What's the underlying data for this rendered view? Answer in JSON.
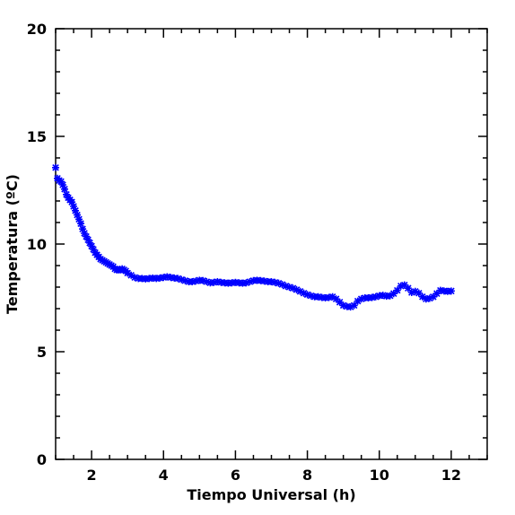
{
  "chart_data": {
    "type": "scatter",
    "marker": "asterisk",
    "title": "",
    "xlabel": "Tiempo Universal (h)",
    "ylabel": "Temperatura (ºC)",
    "xlim": [
      1.0,
      13.0
    ],
    "ylim": [
      0,
      20
    ],
    "xticks": [
      2,
      4,
      6,
      8,
      10,
      12
    ],
    "yticks": [
      0,
      5,
      10,
      15,
      20
    ],
    "grid": false,
    "series": [
      {
        "name": "",
        "color": "#0000ff",
        "points": [
          [
            1.0,
            13.55
          ],
          [
            1.05,
            13.05
          ],
          [
            1.1,
            12.95
          ],
          [
            1.15,
            12.9
          ],
          [
            1.2,
            12.75
          ],
          [
            1.25,
            12.55
          ],
          [
            1.3,
            12.3
          ],
          [
            1.35,
            12.15
          ],
          [
            1.4,
            12.05
          ],
          [
            1.45,
            11.95
          ],
          [
            1.5,
            11.75
          ],
          [
            1.55,
            11.55
          ],
          [
            1.6,
            11.35
          ],
          [
            1.65,
            11.15
          ],
          [
            1.7,
            10.95
          ],
          [
            1.75,
            10.7
          ],
          [
            1.8,
            10.5
          ],
          [
            1.85,
            10.35
          ],
          [
            1.9,
            10.2
          ],
          [
            1.95,
            10.05
          ],
          [
            2.0,
            9.9
          ],
          [
            2.05,
            9.75
          ],
          [
            2.1,
            9.6
          ],
          [
            2.15,
            9.5
          ],
          [
            2.2,
            9.4
          ],
          [
            2.25,
            9.3
          ],
          [
            2.3,
            9.25
          ],
          [
            2.35,
            9.2
          ],
          [
            2.4,
            9.15
          ],
          [
            2.45,
            9.1
          ],
          [
            2.5,
            9.05
          ],
          [
            2.55,
            9.0
          ],
          [
            2.6,
            8.95
          ],
          [
            2.65,
            8.85
          ],
          [
            2.7,
            8.8
          ],
          [
            2.75,
            8.8
          ],
          [
            2.8,
            8.8
          ],
          [
            2.85,
            8.85
          ],
          [
            2.9,
            8.8
          ],
          [
            2.95,
            8.75
          ],
          [
            3.0,
            8.65
          ],
          [
            3.1,
            8.55
          ],
          [
            3.2,
            8.45
          ],
          [
            3.3,
            8.4
          ],
          [
            3.4,
            8.4
          ],
          [
            3.5,
            8.38
          ],
          [
            3.6,
            8.4
          ],
          [
            3.7,
            8.42
          ],
          [
            3.8,
            8.4
          ],
          [
            3.9,
            8.42
          ],
          [
            4.0,
            8.45
          ],
          [
            4.1,
            8.48
          ],
          [
            4.2,
            8.45
          ],
          [
            4.3,
            8.42
          ],
          [
            4.4,
            8.4
          ],
          [
            4.5,
            8.35
          ],
          [
            4.6,
            8.3
          ],
          [
            4.7,
            8.25
          ],
          [
            4.8,
            8.25
          ],
          [
            4.9,
            8.28
          ],
          [
            5.0,
            8.32
          ],
          [
            5.1,
            8.3
          ],
          [
            5.2,
            8.25
          ],
          [
            5.3,
            8.2
          ],
          [
            5.4,
            8.22
          ],
          [
            5.5,
            8.25
          ],
          [
            5.6,
            8.22
          ],
          [
            5.7,
            8.2
          ],
          [
            5.8,
            8.18
          ],
          [
            5.9,
            8.2
          ],
          [
            6.0,
            8.22
          ],
          [
            6.1,
            8.2
          ],
          [
            6.2,
            8.18
          ],
          [
            6.3,
            8.2
          ],
          [
            6.4,
            8.25
          ],
          [
            6.5,
            8.3
          ],
          [
            6.6,
            8.32
          ],
          [
            6.7,
            8.3
          ],
          [
            6.8,
            8.28
          ],
          [
            6.9,
            8.25
          ],
          [
            7.0,
            8.25
          ],
          [
            7.1,
            8.22
          ],
          [
            7.2,
            8.18
          ],
          [
            7.3,
            8.12
          ],
          [
            7.4,
            8.05
          ],
          [
            7.5,
            8.0
          ],
          [
            7.6,
            7.95
          ],
          [
            7.7,
            7.88
          ],
          [
            7.8,
            7.8
          ],
          [
            7.9,
            7.72
          ],
          [
            8.0,
            7.65
          ],
          [
            8.1,
            7.6
          ],
          [
            8.2,
            7.55
          ],
          [
            8.3,
            7.55
          ],
          [
            8.4,
            7.52
          ],
          [
            8.5,
            7.5
          ],
          [
            8.6,
            7.52
          ],
          [
            8.7,
            7.55
          ],
          [
            8.8,
            7.45
          ],
          [
            8.9,
            7.3
          ],
          [
            9.0,
            7.15
          ],
          [
            9.1,
            7.1
          ],
          [
            9.2,
            7.08
          ],
          [
            9.3,
            7.15
          ],
          [
            9.4,
            7.35
          ],
          [
            9.5,
            7.45
          ],
          [
            9.6,
            7.5
          ],
          [
            9.7,
            7.5
          ],
          [
            9.8,
            7.52
          ],
          [
            9.9,
            7.55
          ],
          [
            10.0,
            7.6
          ],
          [
            10.1,
            7.62
          ],
          [
            10.2,
            7.58
          ],
          [
            10.3,
            7.6
          ],
          [
            10.4,
            7.7
          ],
          [
            10.5,
            7.85
          ],
          [
            10.6,
            8.05
          ],
          [
            10.7,
            8.1
          ],
          [
            10.8,
            7.95
          ],
          [
            10.9,
            7.75
          ],
          [
            11.0,
            7.8
          ],
          [
            11.1,
            7.72
          ],
          [
            11.2,
            7.55
          ],
          [
            11.3,
            7.45
          ],
          [
            11.4,
            7.48
          ],
          [
            11.5,
            7.55
          ],
          [
            11.6,
            7.7
          ],
          [
            11.7,
            7.85
          ],
          [
            11.8,
            7.82
          ],
          [
            11.9,
            7.8
          ],
          [
            12.0,
            7.82
          ]
        ]
      }
    ]
  }
}
